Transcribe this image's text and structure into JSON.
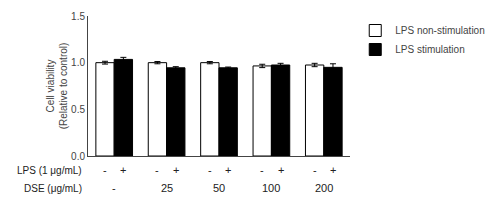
{
  "chart_data": {
    "type": "bar",
    "ylabel": "Cell viability\n(Relative to control)",
    "categories": [
      "-",
      "25",
      "50",
      "100",
      "200"
    ],
    "category_row_label": "DSE (μg/mL)",
    "series_row_label": "LPS (1 μg/mL)",
    "series": [
      {
        "name": "LPS non-stimulation",
        "color": "white",
        "row_mark": "-",
        "values": [
          1.0,
          1.0,
          1.0,
          0.965,
          0.975
        ],
        "errors": [
          0.015,
          0.012,
          0.012,
          0.018,
          0.018
        ]
      },
      {
        "name": "LPS stimulation",
        "color": "black",
        "row_mark": "+",
        "values": [
          1.035,
          0.945,
          0.945,
          0.975,
          0.95
        ],
        "errors": [
          0.022,
          0.012,
          0.008,
          0.018,
          0.038
        ]
      }
    ],
    "ylim": [
      0.0,
      1.5
    ],
    "yticks": [
      {
        "value": 0.0,
        "label": "0.0"
      },
      0.5,
      {
        "value": 1.0,
        "label": "1.0"
      },
      1.5
    ],
    "grid": false,
    "legend": "right",
    "tick_labels": "y"
  }
}
